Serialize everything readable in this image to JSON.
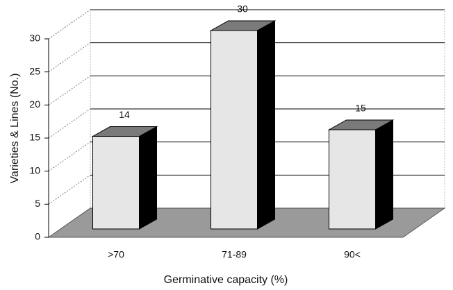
{
  "chart_data": {
    "type": "bar",
    "xlabel": "Germinative capacity (%)",
    "ylabel": "Varieties & Lines (No.)",
    "categories": [
      ">70",
      "71-89",
      "90<"
    ],
    "values": [
      14,
      30,
      15
    ],
    "color": "#e6e6e6",
    "ylim": [
      0,
      30
    ],
    "yticks": [
      0,
      5,
      10,
      15,
      20,
      25,
      30
    ],
    "grid": true
  }
}
